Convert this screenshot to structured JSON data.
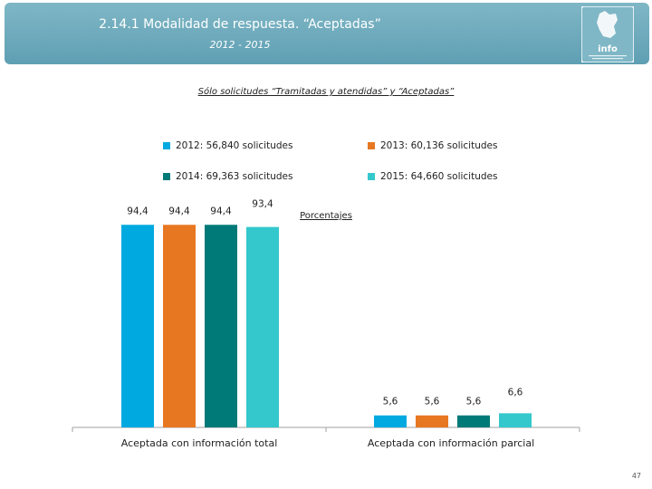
{
  "header": {
    "title": "2.14.1 Modalidad de respuesta. “Aceptadas”",
    "subtitle": "2012 - 2015",
    "logo_text": "info"
  },
  "subheading": "Sólo solicitudes “Tramitadas y atendidas” y “Aceptadas”",
  "unit_label": "Porcentajes",
  "page_number": "47",
  "colors": {
    "header": "#6aa8ba",
    "s2012": "#00a9e0",
    "s2013": "#e87722",
    "s2014": "#007a78",
    "s2015": "#34c8cc",
    "axis": "#a0a0a0"
  },
  "legend": [
    {
      "label": "2012: 56,840 solicitudes",
      "color": "#00a9e0"
    },
    {
      "label": "2013: 60,136 solicitudes",
      "color": "#e87722"
    },
    {
      "label": "2014: 69,363 solicitudes",
      "color": "#007a78"
    },
    {
      "label": "2015: 64,660 solicitudes",
      "color": "#34c8cc"
    }
  ],
  "chart_data": {
    "type": "bar",
    "title": "Porcentajes",
    "categories": [
      "Aceptada con información total",
      "Aceptada con información parcial"
    ],
    "series": [
      {
        "name": "2012",
        "values": [
          94.4,
          5.6
        ],
        "labels": [
          "94,4",
          "5,6"
        ]
      },
      {
        "name": "2013",
        "values": [
          94.4,
          5.6
        ],
        "labels": [
          "94,4",
          "5,6"
        ]
      },
      {
        "name": "2014",
        "values": [
          94.4,
          5.6
        ],
        "labels": [
          "94,4",
          "5,6"
        ]
      },
      {
        "name": "2015",
        "values": [
          93.4,
          6.6
        ],
        "labels": [
          "93,4",
          "6,6"
        ]
      }
    ],
    "ylim": [
      0,
      100
    ],
    "grid": false
  }
}
